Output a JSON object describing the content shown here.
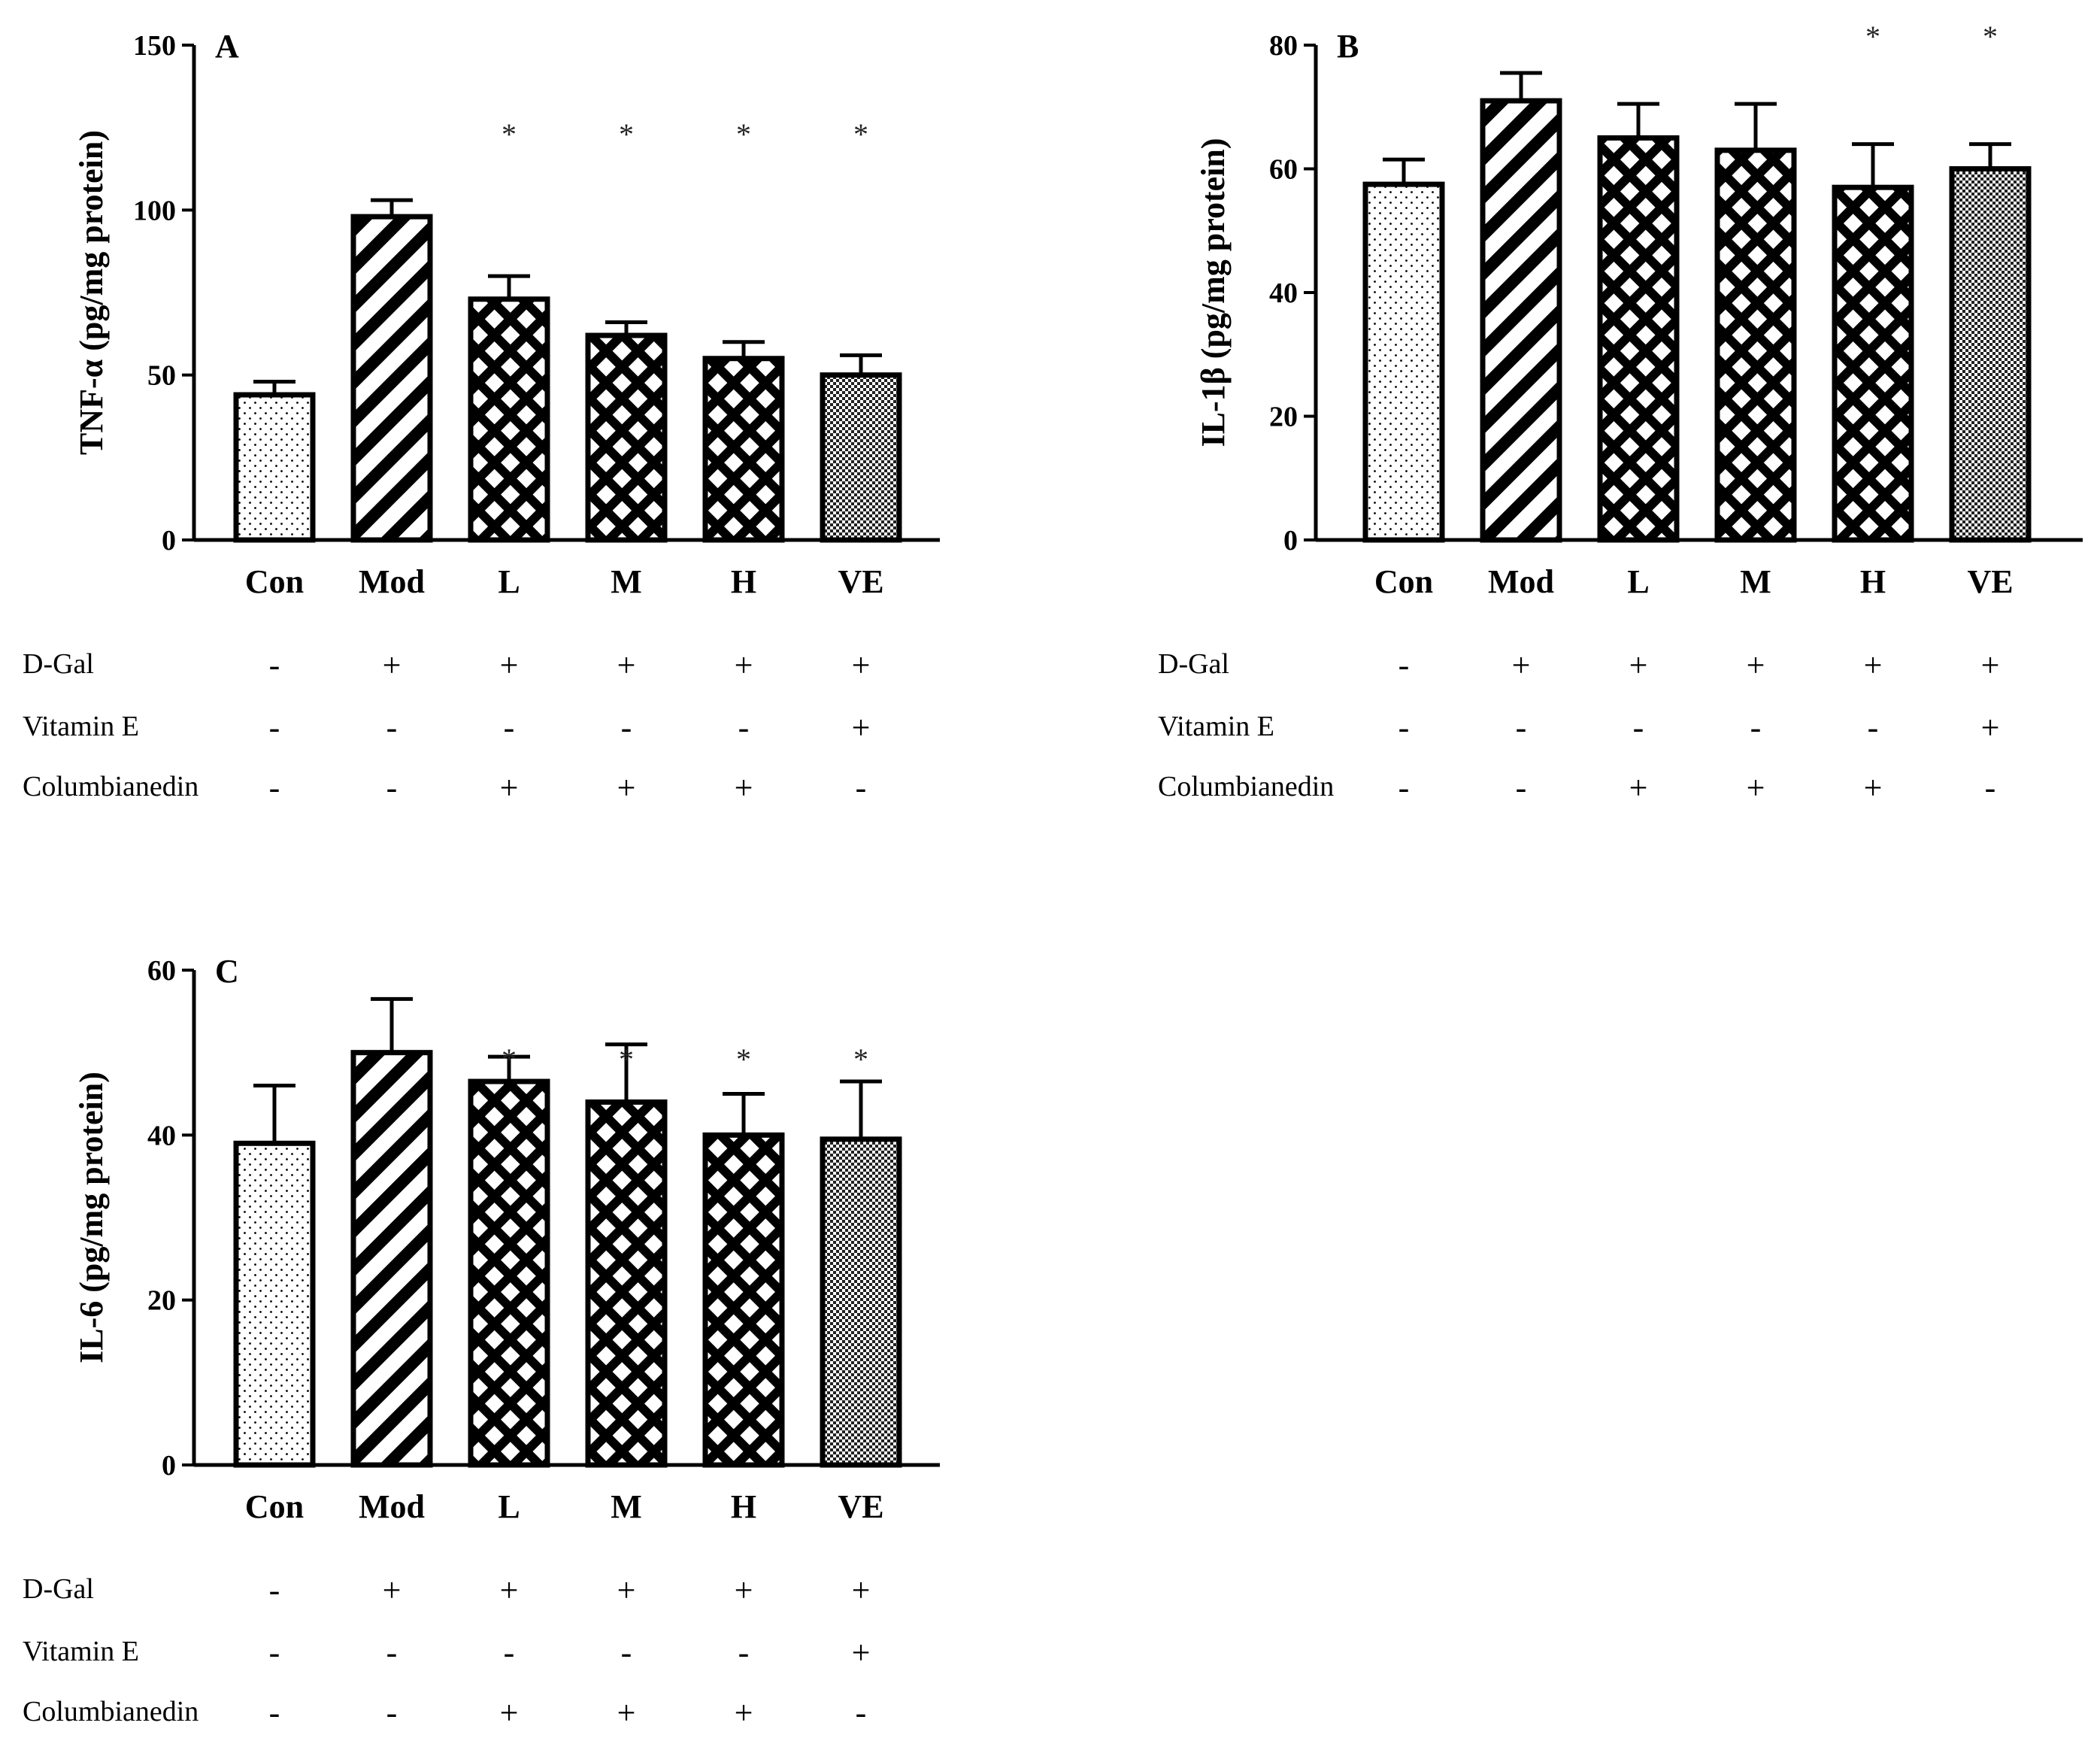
{
  "chart_data": [
    {
      "panel": "A",
      "type": "bar",
      "ylabel": "TNF-α (pg/mg protein)",
      "ylim": [
        0,
        150
      ],
      "yticks": [
        0,
        50,
        100,
        150
      ],
      "categories": [
        "Con",
        "Mod",
        "L",
        "M",
        "H",
        "VE"
      ],
      "values": [
        44,
        98,
        73,
        62,
        55,
        50
      ],
      "errors": [
        4,
        5,
        7,
        4,
        5,
        6
      ],
      "significance": [
        "",
        "",
        "*",
        "*",
        "*",
        "*"
      ],
      "patterns": [
        "dots",
        "diagonal",
        "lattice",
        "lattice",
        "lattice",
        "fine"
      ]
    },
    {
      "panel": "B",
      "type": "bar",
      "ylabel": "IL-1β (pg/mg protein)",
      "ylim": [
        0,
        80
      ],
      "yticks": [
        0,
        20,
        40,
        60,
        80
      ],
      "categories": [
        "Con",
        "Mod",
        "L",
        "M",
        "H",
        "VE"
      ],
      "values": [
        57.5,
        71,
        65,
        63,
        57,
        60
      ],
      "errors": [
        4,
        4.5,
        5.5,
        7.5,
        7,
        4
      ],
      "significance": [
        "",
        "",
        "",
        "",
        "*",
        "*"
      ],
      "patterns": [
        "dots",
        "diagonal",
        "lattice",
        "lattice",
        "lattice",
        "fine"
      ]
    },
    {
      "panel": "C",
      "type": "bar",
      "ylabel": "IL-6 (pg/mg protein)",
      "ylim": [
        0,
        60
      ],
      "yticks": [
        0,
        20,
        40,
        60
      ],
      "categories": [
        "Con",
        "Mod",
        "L",
        "M",
        "H",
        "VE"
      ],
      "values": [
        39,
        50,
        46.5,
        44,
        40,
        39.5
      ],
      "errors": [
        7,
        6.5,
        3,
        7,
        5,
        7
      ],
      "significance": [
        "",
        "",
        "*",
        "*",
        "*",
        "*"
      ],
      "patterns": [
        "dots",
        "diagonal",
        "lattice",
        "lattice",
        "lattice",
        "fine"
      ]
    }
  ],
  "treatment_table": {
    "rows": [
      {
        "label": "D-Gal",
        "signs": [
          "-",
          "+",
          "+",
          "+",
          "+",
          "+"
        ]
      },
      {
        "label": "Vitamin E",
        "signs": [
          "-",
          "-",
          "-",
          "-",
          "-",
          "+"
        ]
      },
      {
        "label": "Columbianedin",
        "signs": [
          "-",
          "-",
          "+",
          "+",
          "+",
          "-"
        ]
      }
    ]
  }
}
